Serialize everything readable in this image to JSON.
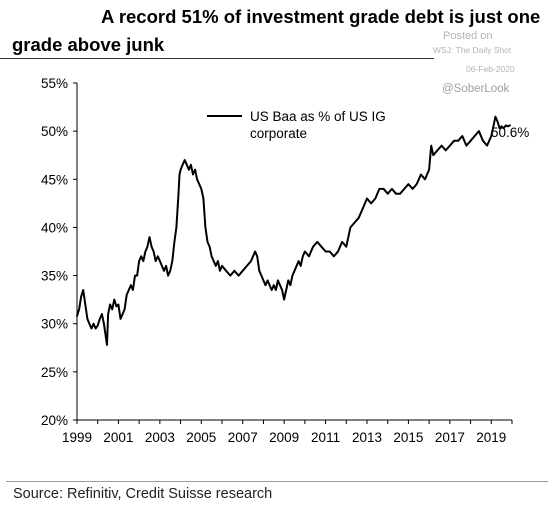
{
  "header": {
    "title_line1": "A record 51% of investment grade debt is just one",
    "title_line2": "grade above junk"
  },
  "watermark": {
    "posted_on": "Posted on",
    "outlet": "WSJ: The Daily Shot",
    "date": "06-Feb-2020",
    "handle": "@SoberLook"
  },
  "footer": {
    "source": "Source: Refinitiv, Credit Suisse research"
  },
  "colors": {
    "series": "#000000",
    "axis": "#000000",
    "text": "#000000"
  },
  "chart_data": {
    "type": "line",
    "title": "",
    "xlabel": "",
    "ylabel": "",
    "xlim": [
      1999,
      2020
    ],
    "ylim": [
      20,
      55
    ],
    "grid": false,
    "legend_position": "top-left",
    "x_ticks": [
      1999,
      2001,
      2003,
      2005,
      2007,
      2009,
      2011,
      2013,
      2015,
      2017,
      2019
    ],
    "x_tick_labels": [
      "1999",
      "2001",
      "2003",
      "2005",
      "2007",
      "2009",
      "2011",
      "2013",
      "2015",
      "2017",
      "2019"
    ],
    "y_ticks": [
      20,
      25,
      30,
      35,
      40,
      45,
      50,
      55
    ],
    "y_tick_labels": [
      "20%",
      "25%",
      "30%",
      "35%",
      "40%",
      "45%",
      "50%",
      "55%"
    ],
    "annotations": [
      {
        "x": 2019.4,
        "y": 50.6,
        "text": "50.6%"
      }
    ],
    "series": [
      {
        "name": "US Baa as % of US IG corporate",
        "x": [
          1999.0,
          1999.1,
          1999.2,
          1999.3,
          1999.4,
          1999.5,
          1999.6,
          1999.7,
          1999.8,
          1999.9,
          2000.0,
          2000.1,
          2000.2,
          2000.3,
          2000.4,
          2000.45,
          2000.5,
          2000.6,
          2000.7,
          2000.8,
          2000.9,
          2001.0,
          2001.1,
          2001.2,
          2001.3,
          2001.4,
          2001.5,
          2001.6,
          2001.7,
          2001.8,
          2001.9,
          2002.0,
          2002.1,
          2002.2,
          2002.3,
          2002.4,
          2002.5,
          2002.6,
          2002.7,
          2002.8,
          2002.9,
          2003.0,
          2003.1,
          2003.2,
          2003.3,
          2003.4,
          2003.5,
          2003.6,
          2003.7,
          2003.8,
          2003.9,
          2003.95,
          2004.0,
          2004.1,
          2004.2,
          2004.3,
          2004.4,
          2004.5,
          2004.6,
          2004.7,
          2004.8,
          2004.9,
          2005.0,
          2005.1,
          2005.2,
          2005.3,
          2005.4,
          2005.5,
          2005.6,
          2005.7,
          2005.8,
          2005.9,
          2006.0,
          2006.2,
          2006.4,
          2006.6,
          2006.8,
          2007.0,
          2007.2,
          2007.4,
          2007.6,
          2007.7,
          2007.8,
          2007.9,
          2008.0,
          2008.1,
          2008.2,
          2008.3,
          2008.4,
          2008.5,
          2008.6,
          2008.7,
          2008.8,
          2008.9,
          2009.0,
          2009.1,
          2009.2,
          2009.3,
          2009.4,
          2009.5,
          2009.6,
          2009.7,
          2009.8,
          2009.9,
          2010.0,
          2010.2,
          2010.4,
          2010.6,
          2010.8,
          2011.0,
          2011.2,
          2011.4,
          2011.6,
          2011.8,
          2012.0,
          2012.2,
          2012.4,
          2012.6,
          2012.8,
          2013.0,
          2013.2,
          2013.4,
          2013.6,
          2013.8,
          2014.0,
          2014.2,
          2014.4,
          2014.6,
          2014.8,
          2015.0,
          2015.2,
          2015.4,
          2015.6,
          2015.8,
          2016.0,
          2016.1,
          2016.2,
          2016.4,
          2016.6,
          2016.8,
          2017.0,
          2017.2,
          2017.4,
          2017.6,
          2017.8,
          2018.0,
          2018.2,
          2018.4,
          2018.6,
          2018.8,
          2019.0,
          2019.1,
          2019.2,
          2019.3,
          2019.4,
          2019.5,
          2019.6,
          2019.7,
          2019.8,
          2019.9
        ],
        "values": [
          30.8,
          31.5,
          32.8,
          33.5,
          32.0,
          30.5,
          30.0,
          29.5,
          30.0,
          29.5,
          29.8,
          30.5,
          31.0,
          30.0,
          28.5,
          27.8,
          31.0,
          32.0,
          31.5,
          32.5,
          31.8,
          32.0,
          30.5,
          31.0,
          31.5,
          33.0,
          33.5,
          34.0,
          33.5,
          35.0,
          35.0,
          36.5,
          37.0,
          36.5,
          37.5,
          38.0,
          39.0,
          38.0,
          37.5,
          36.5,
          37.0,
          36.5,
          36.0,
          35.5,
          36.0,
          35.0,
          35.5,
          36.5,
          38.5,
          40.0,
          43.5,
          45.5,
          46.0,
          46.5,
          47.0,
          46.5,
          46.0,
          46.5,
          45.5,
          46.0,
          45.0,
          44.5,
          44.0,
          43.0,
          40.0,
          38.5,
          38.0,
          37.0,
          36.5,
          36.0,
          36.5,
          35.5,
          36.0,
          35.5,
          35.0,
          35.5,
          35.0,
          35.5,
          36.0,
          36.5,
          37.5,
          37.0,
          35.5,
          35.0,
          34.5,
          34.0,
          34.5,
          34.0,
          33.5,
          34.0,
          33.5,
          34.5,
          34.0,
          33.5,
          32.5,
          33.5,
          34.5,
          34.0,
          35.0,
          35.5,
          36.0,
          36.5,
          36.0,
          37.0,
          37.5,
          37.0,
          38.0,
          38.5,
          38.0,
          37.5,
          37.5,
          37.0,
          37.5,
          38.5,
          38.0,
          40.0,
          40.5,
          41.0,
          42.0,
          43.0,
          42.5,
          43.0,
          44.0,
          44.0,
          43.5,
          44.0,
          43.5,
          43.5,
          44.0,
          44.5,
          44.0,
          44.5,
          45.5,
          45.0,
          46.0,
          48.5,
          47.5,
          48.0,
          48.5,
          48.0,
          48.5,
          49.0,
          49.0,
          49.5,
          48.5,
          49.0,
          49.5,
          50.0,
          49.0,
          48.5,
          49.5,
          50.5,
          51.5,
          51.0,
          50.3,
          50.5,
          50.3,
          50.6,
          50.5,
          50.6
        ]
      }
    ]
  }
}
